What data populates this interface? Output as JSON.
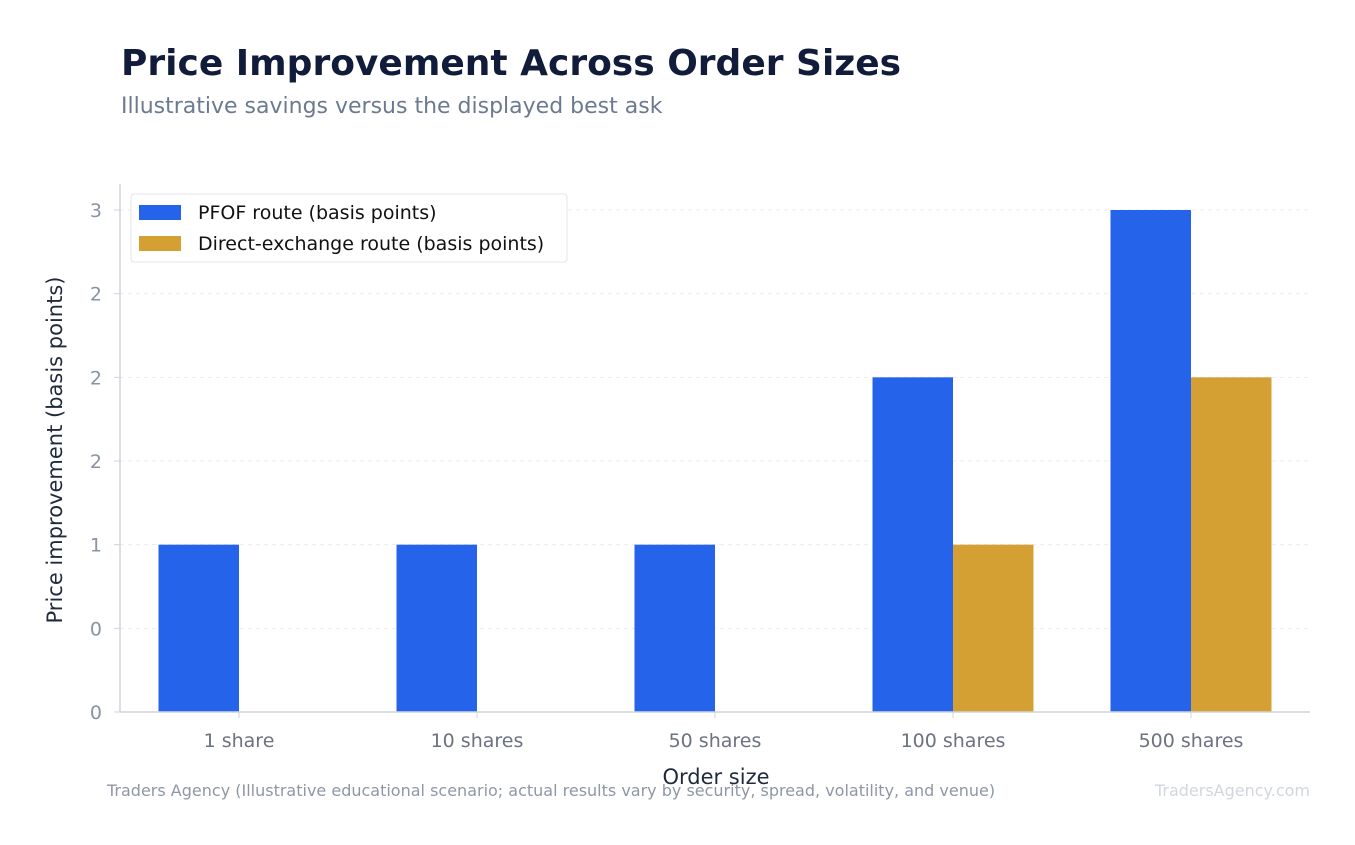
{
  "chart_data": {
    "type": "bar",
    "title": "Price Improvement Across Order Sizes",
    "subtitle": "Illustrative savings versus the displayed best ask",
    "xlabel": "Order size",
    "ylabel": "Price improvement (basis points)",
    "categories": [
      "1 share",
      "10 shares",
      "50 shares",
      "100 shares",
      "500 shares"
    ],
    "series": [
      {
        "name": "PFOF route (basis points)",
        "values": [
          1.0,
          1.0,
          1.0,
          2.0,
          3.0
        ]
      },
      {
        "name": "Direct-exchange route (basis points)",
        "values": [
          0.0,
          0.0,
          0.0,
          1.0,
          2.0
        ]
      }
    ],
    "ylim": [
      0,
      3
    ],
    "yticks": [
      0,
      0.5,
      1.0,
      1.5,
      2.0,
      2.5,
      3.0
    ],
    "ytick_labels": [
      "0",
      "0",
      "1",
      "2",
      "2",
      "2",
      "3"
    ],
    "grid": true,
    "legend_position": "top-left",
    "colors": {
      "series": [
        "#2563eb",
        "#d4a033"
      ],
      "title": "#111c3a",
      "subtitle": "#6b7a90",
      "tick": "#8a93a3"
    },
    "footer": {
      "source": "Traders Agency (Illustrative educational scenario; actual results vary by security, spread, volatility, and venue)",
      "watermark": "TradersAgency.com"
    }
  }
}
